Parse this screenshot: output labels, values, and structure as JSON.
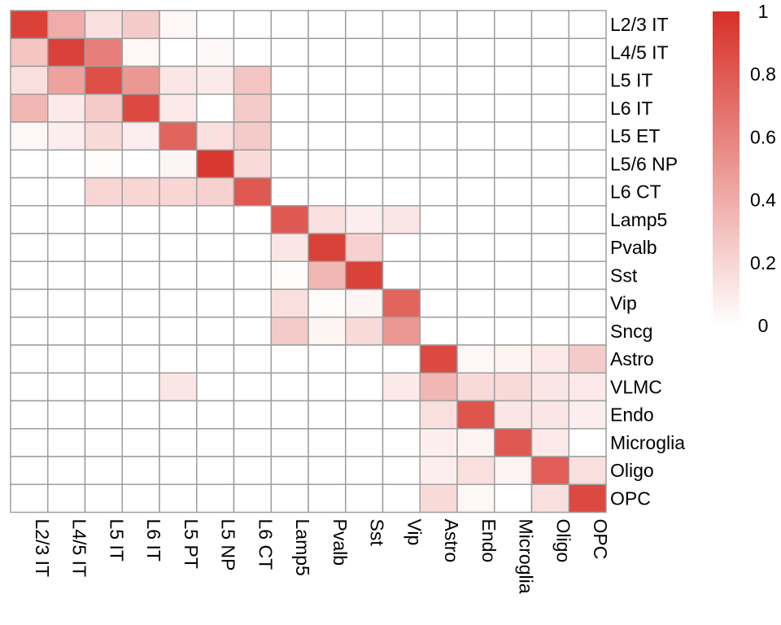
{
  "chart_data": {
    "type": "heatmap",
    "title": "",
    "xlabel": "",
    "ylabel": "",
    "row_labels": [
      "L2/3 IT",
      "L4/5 IT",
      "L5 IT",
      "L6 IT",
      "L5 ET",
      "L5/6 NP",
      "L6 CT",
      "Lamp5",
      "Pvalb",
      "Sst",
      "Vip",
      "Sncg",
      "Astro",
      "VLMC",
      "Endo",
      "Microglia",
      "Oligo",
      "OPC"
    ],
    "col_labels": [
      "L2/3 IT",
      "L4/5 IT",
      "L5 IT",
      "L6 IT",
      "L5 PT",
      "L5 NP",
      "L6 CT",
      "Lamp5",
      "Pvalb",
      "Sst",
      "Vip",
      "Astro",
      "Endo",
      "Microglia",
      "Oligo",
      "OPC"
    ],
    "values": [
      [
        0.92,
        0.4,
        0.15,
        0.25,
        0.04,
        0,
        0,
        0,
        0,
        0,
        0,
        0,
        0,
        0,
        0,
        0
      ],
      [
        0.28,
        0.92,
        0.62,
        0.04,
        0,
        0.03,
        0,
        0,
        0,
        0,
        0,
        0,
        0,
        0,
        0,
        0
      ],
      [
        0.15,
        0.45,
        0.85,
        0.5,
        0.12,
        0.1,
        0.28,
        0,
        0,
        0,
        0,
        0,
        0,
        0,
        0,
        0
      ],
      [
        0.35,
        0.1,
        0.25,
        0.88,
        0.1,
        0,
        0.25,
        0,
        0,
        0,
        0,
        0,
        0,
        0,
        0,
        0
      ],
      [
        0.04,
        0.08,
        0.18,
        0.08,
        0.75,
        0.15,
        0.25,
        0,
        0,
        0,
        0,
        0,
        0,
        0,
        0,
        0
      ],
      [
        0,
        0,
        0.02,
        0,
        0.05,
        0.96,
        0.18,
        0,
        0,
        0,
        0,
        0,
        0,
        0,
        0,
        0
      ],
      [
        0,
        0,
        0.2,
        0.2,
        0.2,
        0.22,
        0.8,
        0,
        0,
        0,
        0,
        0,
        0,
        0,
        0,
        0
      ],
      [
        0,
        0,
        0,
        0,
        0,
        0,
        0,
        0.8,
        0.15,
        0.08,
        0.12,
        0,
        0,
        0,
        0,
        0
      ],
      [
        0,
        0,
        0,
        0,
        0,
        0,
        0,
        0.12,
        0.92,
        0.22,
        0,
        0,
        0,
        0,
        0,
        0
      ],
      [
        0,
        0,
        0,
        0,
        0,
        0,
        0,
        0.02,
        0.35,
        0.92,
        0,
        0,
        0,
        0,
        0,
        0
      ],
      [
        0,
        0,
        0,
        0,
        0,
        0,
        0,
        0.15,
        0.02,
        0.05,
        0.75,
        0,
        0,
        0,
        0,
        0
      ],
      [
        0,
        0,
        0,
        0,
        0,
        0,
        0,
        0.25,
        0.05,
        0.18,
        0.5,
        0,
        0,
        0,
        0,
        0
      ],
      [
        0,
        0,
        0,
        0,
        0,
        0,
        0,
        0,
        0,
        0,
        0,
        0.88,
        0.04,
        0.06,
        0.1,
        0.25
      ],
      [
        0,
        0,
        0,
        0,
        0.12,
        0,
        0,
        0,
        0,
        0,
        0.1,
        0.35,
        0.18,
        0.18,
        0.12,
        0.1
      ],
      [
        0,
        0,
        0,
        0,
        0,
        0,
        0,
        0,
        0,
        0,
        0,
        0.15,
        0.82,
        0.12,
        0.12,
        0.08
      ],
      [
        0,
        0,
        0,
        0,
        0,
        0,
        0,
        0,
        0,
        0,
        0,
        0.08,
        0.06,
        0.8,
        0.1,
        0
      ],
      [
        0,
        0,
        0,
        0,
        0,
        0,
        0,
        0,
        0,
        0,
        0,
        0.08,
        0.15,
        0.06,
        0.78,
        0.15
      ],
      [
        0,
        0,
        0,
        0,
        0,
        0,
        0,
        0,
        0,
        0,
        0,
        0.18,
        0.04,
        0,
        0.15,
        0.88
      ]
    ],
    "value_range": [
      0,
      1
    ],
    "colorscale": [
      "#ffffff",
      "#d73027"
    ],
    "colorbar_ticks": [
      "1",
      "0.8",
      "0.6",
      "0.4",
      "0.2",
      "0"
    ],
    "colorbar_tick_values": [
      1,
      0.8,
      0.6,
      0.4,
      0.2,
      0
    ],
    "grid": true,
    "grid_color": "#9e9e9e",
    "legend": "colorbar-right"
  }
}
